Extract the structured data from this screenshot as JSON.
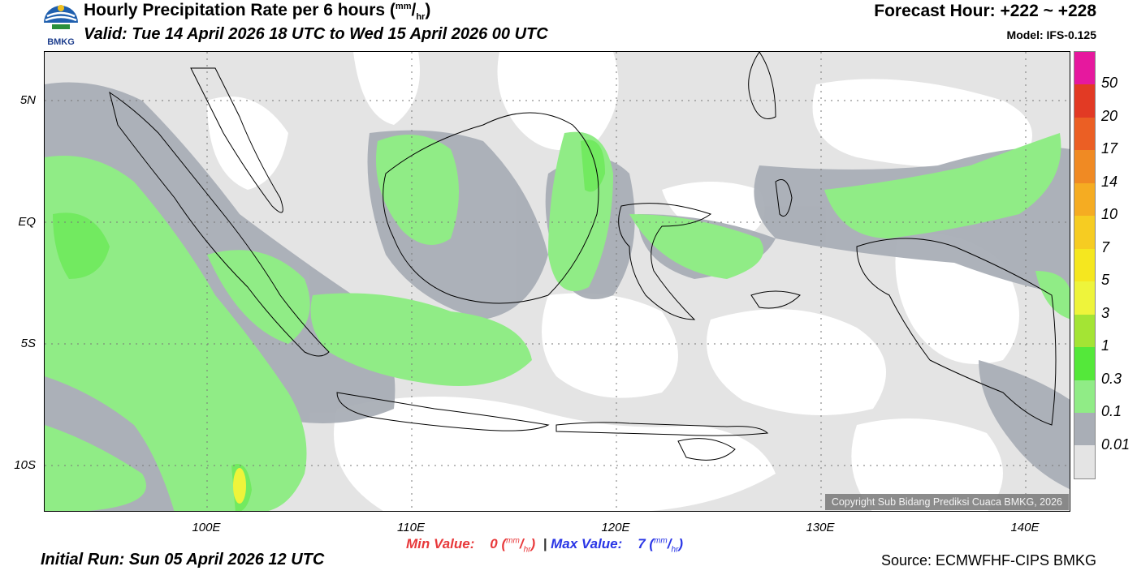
{
  "header": {
    "title": "Hourly Precipitation Rate per 6 hours",
    "title_unit_num": "mm",
    "title_unit_sep": "/",
    "title_unit_den": "hr",
    "valid": "Valid: Tue 14 April 2026 18 UTC to Wed 15 April 2026 00 UTC",
    "forecast_hour": "Forecast Hour: +222 ~ +228",
    "model": "Model: IFS-0.125"
  },
  "logo": {
    "text": "BMKG",
    "icon": "bmkg-logo-icon"
  },
  "map": {
    "y_labels": [
      "5N",
      "EQ",
      "5S",
      "10S"
    ],
    "x_labels": [
      "100E",
      "110E",
      "120E",
      "130E",
      "140E"
    ],
    "copyright": "Copyright Sub Bidang Prediksi Cuaca BMKG, 2026"
  },
  "colorbar": {
    "labels": [
      "50",
      "20",
      "17",
      "14",
      "10",
      "7",
      "5",
      "3",
      "1",
      "0.3",
      "0.1",
      "0.01"
    ],
    "colors": [
      "#e6189e",
      "#e23a24",
      "#eb5f24",
      "#f08a23",
      "#f5ac22",
      "#f6cc22",
      "#f5e71f",
      "#eef43b",
      "#a4e434",
      "#54e83a",
      "#90ec86",
      "#a9aeb6",
      "#e4e4e4"
    ]
  },
  "footer": {
    "min_label": "Min Value:",
    "min_value": "0",
    "max_label": "Max Value:",
    "max_value": "7",
    "unit_num": "mm",
    "unit_den": "hr",
    "initial_run": "Initial Run: Sun 05 April 2026 12 UTC",
    "source": "Source: ECMWFHF-CIPS BMKG"
  }
}
